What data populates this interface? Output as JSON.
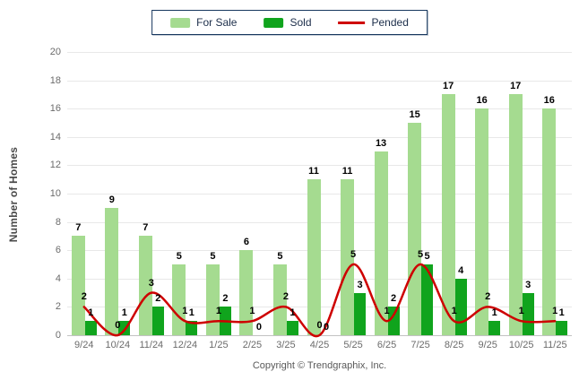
{
  "legend": {
    "items": [
      {
        "id": "for-sale",
        "label": "For Sale",
        "swatch": "bar",
        "color": "#A5DB90"
      },
      {
        "id": "sold",
        "label": "Sold",
        "swatch": "bar",
        "color": "#10A41D"
      },
      {
        "id": "pended",
        "label": "Pended",
        "swatch": "line",
        "color": "#CE0000"
      }
    ]
  },
  "y_axis": {
    "title": "Number of Homes"
  },
  "footer": {
    "copyright": "Copyright © Trendgraphix, Inc."
  },
  "chart_data": {
    "type": "bar",
    "categories": [
      "9/24",
      "10/24",
      "11/24",
      "12/24",
      "1/25",
      "2/25",
      "3/25",
      "4/25",
      "5/25",
      "6/25",
      "7/25",
      "8/25",
      "9/25",
      "10/25",
      "11/25"
    ],
    "series": [
      {
        "name": "For Sale",
        "type": "bar",
        "color": "#A5DB90",
        "values": [
          7,
          9,
          7,
          5,
          5,
          6,
          5,
          11,
          11,
          13,
          15,
          17,
          16,
          17,
          16
        ]
      },
      {
        "name": "Sold",
        "type": "bar",
        "color": "#10A41D",
        "values": [
          1,
          1,
          2,
          1,
          2,
          0,
          1,
          0,
          3,
          2,
          5,
          4,
          1,
          3,
          1
        ]
      },
      {
        "name": "Pended",
        "type": "line",
        "color": "#CE0000",
        "values": [
          2,
          0,
          3,
          1,
          1,
          1,
          2,
          0,
          5,
          1,
          5,
          1,
          2,
          1,
          1
        ]
      }
    ],
    "title": "",
    "xlabel": "",
    "ylabel": "Number of Homes",
    "ylim": [
      0,
      20
    ],
    "ytick_step": 2,
    "grid": "horizontal",
    "legend_position": "top-center",
    "data_labels": true
  }
}
